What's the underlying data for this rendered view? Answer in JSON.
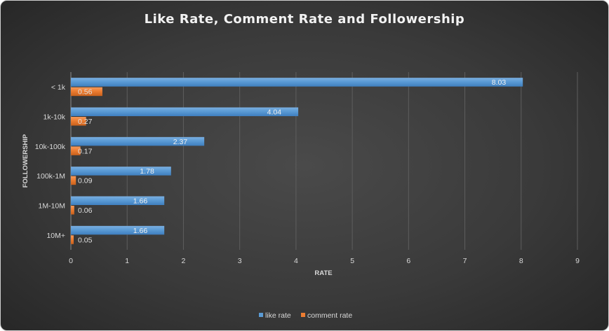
{
  "chart_data": {
    "type": "bar",
    "orientation": "horizontal",
    "title": "Like Rate, Comment Rate and Followership",
    "xlabel": "RATE",
    "ylabel": "FOLLOWERSHIP",
    "categories": [
      "< 1k",
      "1k-10k",
      "10k-100k",
      "100k-1M",
      "1M-10M",
      "10M+"
    ],
    "series": [
      {
        "name": "like rate",
        "color": "#5b9bd5",
        "values": [
          8.03,
          4.04,
          2.37,
          1.78,
          1.66,
          1.66
        ]
      },
      {
        "name": "comment rate",
        "color": "#ed7d31",
        "values": [
          0.56,
          0.27,
          0.17,
          0.09,
          0.06,
          0.05
        ]
      }
    ],
    "xlim": [
      0,
      9
    ],
    "xticks": [
      0,
      1,
      2,
      3,
      4,
      5,
      6,
      7,
      8,
      9
    ],
    "grid": true,
    "legend_position": "bottom",
    "data_labels": true
  }
}
